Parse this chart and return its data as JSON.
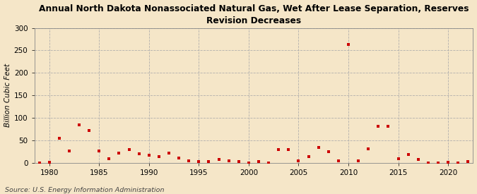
{
  "title_line1": "Annual North Dakota Nonassociated Natural Gas, Wet After Lease Separation, Reserves",
  "title_line2": "Revision Decreases",
  "ylabel": "Billion Cubic Feet",
  "source": "Source: U.S. Energy Information Administration",
  "background_color": "#f5e6c8",
  "marker_color": "#cc0000",
  "years": [
    1979,
    1980,
    1981,
    1982,
    1983,
    1984,
    1985,
    1986,
    1987,
    1988,
    1989,
    1990,
    1991,
    1992,
    1993,
    1994,
    1995,
    1996,
    1997,
    1998,
    1999,
    2000,
    2001,
    2002,
    2003,
    2004,
    2005,
    2006,
    2007,
    2008,
    2009,
    2010,
    2011,
    2012,
    2013,
    2014,
    2015,
    2016,
    2017,
    2018,
    2019,
    2020,
    2021,
    2022
  ],
  "values": [
    0.5,
    2,
    55,
    27,
    85,
    72,
    27,
    10,
    22,
    30,
    20,
    18,
    15,
    22,
    12,
    5,
    3,
    4,
    8,
    5,
    3,
    1,
    3,
    0,
    30,
    30,
    5,
    15,
    35,
    25,
    5,
    263,
    5,
    32,
    82,
    82,
    10,
    19,
    8,
    0.5,
    0.5,
    2,
    1,
    3
  ],
  "xlim": [
    1978.5,
    2022.5
  ],
  "ylim": [
    0,
    300
  ],
  "yticks": [
    0,
    50,
    100,
    150,
    200,
    250,
    300
  ],
  "xticks": [
    1980,
    1985,
    1990,
    1995,
    2000,
    2005,
    2010,
    2015,
    2020
  ],
  "grid_color": "#aaaaaa",
  "spine_color": "#888888"
}
